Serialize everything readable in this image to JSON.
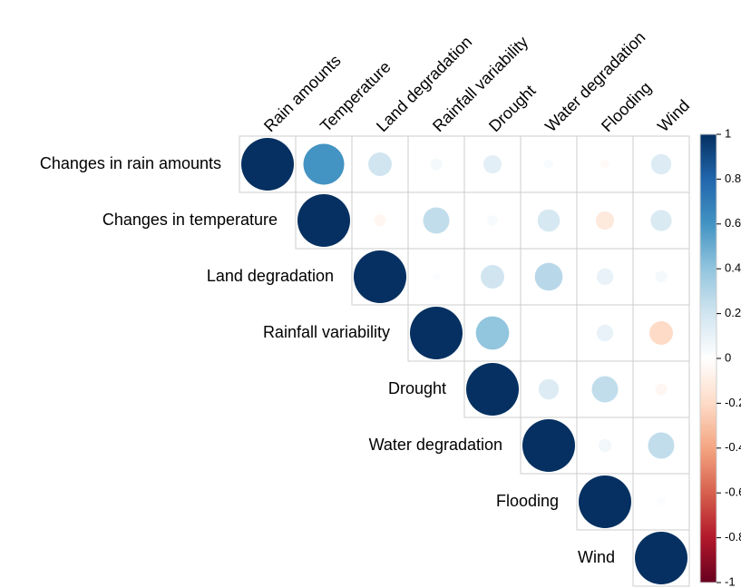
{
  "chart_data": {
    "type": "corrplot",
    "rows": [
      "Changes in rain amounts",
      "Changes in temperature",
      "Land degradation",
      "Rainfall variability",
      "Drought",
      "Water degradation",
      "Flooding",
      "Wind"
    ],
    "columns": [
      "Rain amounts",
      "Temperature",
      "Land degradation",
      "Rainfall variability",
      "Drought",
      "Water degradation",
      "Flooding",
      "Wind"
    ],
    "values": [
      [
        1,
        0.6,
        0.2,
        0.05,
        0.12,
        0.03,
        -0.03,
        0.15
      ],
      [
        1,
        -0.05,
        0.25,
        0.04,
        0.18,
        -0.12,
        0.16
      ],
      [
        1,
        0.02,
        0.2,
        0.28,
        0.1,
        0.05
      ],
      [
        1,
        0.4,
        0.01,
        0.1,
        -0.2
      ],
      [
        1,
        0.15,
        0.25,
        -0.05
      ],
      [
        1,
        0.06,
        0.25
      ],
      [
        1,
        0.02
      ],
      [
        1
      ]
    ],
    "colorscale": [
      "#67001f",
      "#b2182b",
      "#d6604d",
      "#f4a582",
      "#fddbc7",
      "#ffffff",
      "#d1e5f0",
      "#92c5de",
      "#4393c3",
      "#2166ac",
      "#053061"
    ],
    "clim": [
      -1,
      1
    ],
    "cticks": [
      1,
      0.8,
      0.6,
      0.4,
      0.2,
      0,
      -0.2,
      -0.4,
      -0.6,
      -0.8,
      -1
    ]
  }
}
